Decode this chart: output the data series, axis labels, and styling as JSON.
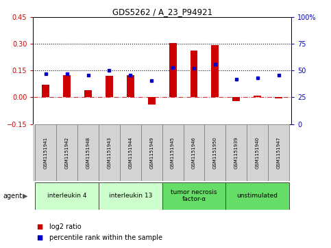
{
  "title": "GDS5262 / A_23_P94921",
  "samples": [
    "GSM1151941",
    "GSM1151942",
    "GSM1151948",
    "GSM1151943",
    "GSM1151944",
    "GSM1151949",
    "GSM1151945",
    "GSM1151946",
    "GSM1151950",
    "GSM1151939",
    "GSM1151940",
    "GSM1151947"
  ],
  "log2_ratio": [
    0.07,
    0.125,
    0.04,
    0.12,
    0.125,
    -0.04,
    0.305,
    0.265,
    0.295,
    -0.02,
    0.01,
    -0.005
  ],
  "percentile": [
    47,
    47,
    46,
    50,
    46,
    41,
    53,
    52,
    56,
    42,
    43,
    46
  ],
  "bar_color": "#cc0000",
  "dot_color": "#0000cc",
  "ylim_left": [
    -0.15,
    0.45
  ],
  "ylim_right": [
    0,
    100
  ],
  "yticks_left": [
    -0.15,
    0.0,
    0.15,
    0.3,
    0.45
  ],
  "yticks_right": [
    0,
    25,
    50,
    75,
    100
  ],
  "ytick_labels_right": [
    "0",
    "25",
    "50",
    "75",
    "100%"
  ],
  "hlines": [
    0.15,
    0.3
  ],
  "agents": [
    {
      "label": "interleukin 4",
      "samples": [
        0,
        1,
        2
      ],
      "color": "#ccffcc"
    },
    {
      "label": "interleukin 13",
      "samples": [
        3,
        4,
        5
      ],
      "color": "#ccffcc"
    },
    {
      "label": "tumor necrosis\nfactor-α",
      "samples": [
        6,
        7,
        8
      ],
      "color": "#66dd66"
    },
    {
      "label": "unstimulated",
      "samples": [
        9,
        10,
        11
      ],
      "color": "#66dd66"
    }
  ],
  "agent_label": "agent",
  "background_color": "#ffffff",
  "plot_bg": "#ffffff",
  "sample_bg": "#d4d4d4",
  "bar_width": 0.35
}
